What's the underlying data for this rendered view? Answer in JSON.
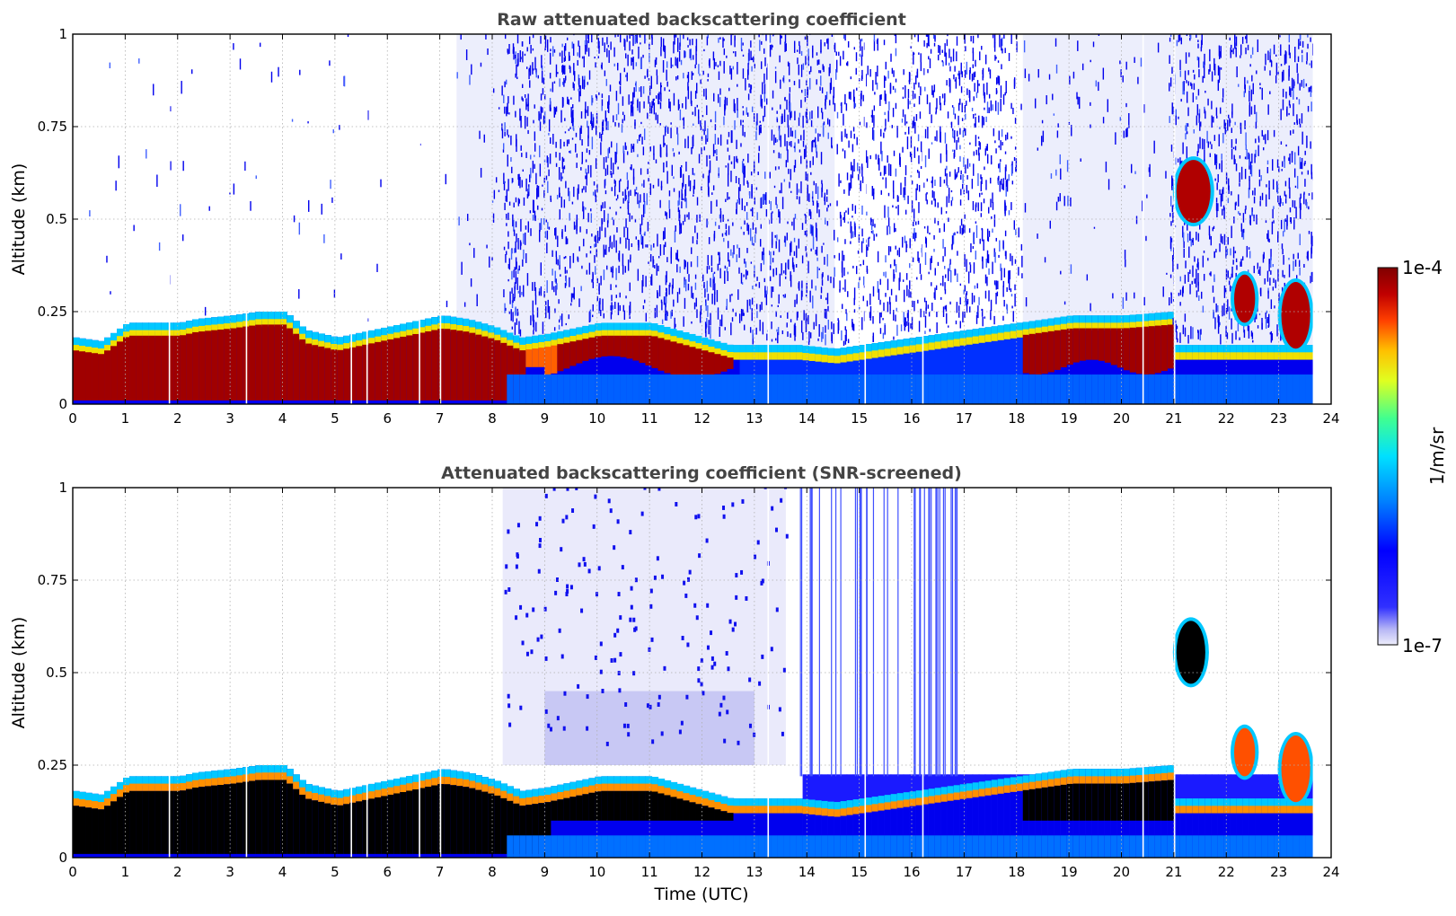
{
  "chart_data": [
    {
      "type": "heatmap",
      "title": "Raw attenuated backscattering coefficient",
      "xlabel": "",
      "ylabel": "Altitude (km)",
      "xlim": [
        0,
        24
      ],
      "ylim": [
        0,
        1
      ],
      "xticks": [
        "0",
        "1",
        "2",
        "3",
        "4",
        "5",
        "6",
        "7",
        "8",
        "9",
        "10",
        "11",
        "12",
        "13",
        "14",
        "15",
        "16",
        "17",
        "18",
        "19",
        "20",
        "21",
        "22",
        "23",
        "24"
      ],
      "yticks": [
        "0",
        "0.25",
        "0.5",
        "0.75",
        "1"
      ],
      "grid": true,
      "data_end_hour": 23.65,
      "layer_top_km": [
        [
          0.0,
          0.18
        ],
        [
          0.5,
          0.17
        ],
        [
          0.8,
          0.2
        ],
        [
          1.0,
          0.22
        ],
        [
          2.0,
          0.22
        ],
        [
          2.3,
          0.23
        ],
        [
          3.0,
          0.24
        ],
        [
          3.5,
          0.25
        ],
        [
          4.0,
          0.25
        ],
        [
          4.4,
          0.2
        ],
        [
          5.0,
          0.18
        ],
        [
          6.0,
          0.21
        ],
        [
          7.0,
          0.24
        ],
        [
          7.5,
          0.23
        ],
        [
          8.0,
          0.21
        ],
        [
          8.5,
          0.18
        ],
        [
          9.0,
          0.19
        ],
        [
          10.0,
          0.22
        ],
        [
          11.0,
          0.22
        ],
        [
          12.0,
          0.18
        ],
        [
          12.5,
          0.16
        ],
        [
          13.0,
          0.16
        ],
        [
          13.8,
          0.16
        ],
        [
          14.5,
          0.15
        ],
        [
          18.0,
          0.22
        ],
        [
          19.0,
          0.24
        ],
        [
          20.0,
          0.24
        ],
        [
          20.9,
          0.25
        ],
        [
          21.0,
          0.16
        ],
        [
          23.65,
          0.16
        ]
      ],
      "upper_features": [
        {
          "x": [
            21.05,
            21.7
          ],
          "y": [
            0.49,
            0.66
          ],
          "level": "high"
        },
        {
          "x": [
            22.15,
            22.55
          ],
          "y": [
            0.22,
            0.35
          ],
          "level": "high"
        },
        {
          "x": [
            23.05,
            23.6
          ],
          "y": [
            0.15,
            0.33
          ],
          "level": "high"
        }
      ],
      "noise_regime": [
        {
          "x": [
            0,
            7.3
          ],
          "state": "clean"
        },
        {
          "x": [
            7.3,
            8.2
          ],
          "state": "faint"
        },
        {
          "x": [
            8.2,
            18.0
          ],
          "state": "noisy"
        },
        {
          "x": [
            18.0,
            20.9
          ],
          "state": "faint"
        },
        {
          "x": [
            20.9,
            23.65
          ],
          "state": "noisy"
        }
      ]
    },
    {
      "type": "heatmap",
      "title": "Attenuated backscattering coefficient (SNR-screened)",
      "xlabel": "Time (UTC)",
      "ylabel": "Altitude (km)",
      "xlim": [
        0,
        24
      ],
      "ylim": [
        0,
        1
      ],
      "xticks": [
        "0",
        "1",
        "2",
        "3",
        "4",
        "5",
        "6",
        "7",
        "8",
        "9",
        "10",
        "11",
        "12",
        "13",
        "14",
        "15",
        "16",
        "17",
        "18",
        "19",
        "20",
        "21",
        "22",
        "23",
        "24"
      ],
      "yticks": [
        "0",
        "0.25",
        "0.5",
        "0.75",
        "1"
      ],
      "grid": true,
      "data_end_hour": 23.65,
      "saturated_color": "#000000",
      "screened_block": {
        "x": [
          13.9,
          23.65
        ],
        "y": [
          0,
          0.225
        ]
      },
      "upper_features": [
        {
          "x": [
            21.05,
            21.6
          ],
          "y": [
            0.47,
            0.64
          ],
          "level": "saturated"
        },
        {
          "x": [
            22.15,
            22.55
          ],
          "y": [
            0.22,
            0.35
          ],
          "level": "high"
        },
        {
          "x": [
            23.05,
            23.6
          ],
          "y": [
            0.15,
            0.33
          ],
          "level": "high"
        }
      ],
      "haze_region": {
        "x": [
          8.2,
          13.6
        ],
        "y": [
          0.25,
          1.0
        ]
      }
    }
  ],
  "colorbar": {
    "label": "1/m/sr",
    "max_label": "1e-4",
    "min_label": "1e-7",
    "scale": "log",
    "colormap": "jet",
    "low_color": "#e6e6fa",
    "high_color": "#800000"
  }
}
